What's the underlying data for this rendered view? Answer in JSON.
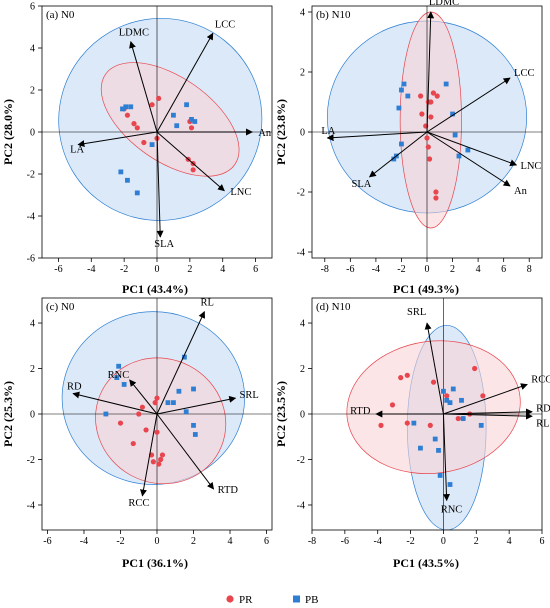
{
  "colors": {
    "PR": "#e8454e",
    "PB": "#2e7fd4",
    "PR_fill": "#f8d3d6",
    "PB_fill": "#cfe2f5"
  },
  "legend": {
    "items": [
      {
        "key": "PR",
        "label": "PR"
      },
      {
        "key": "PB",
        "label": "PB"
      }
    ],
    "placement": "bottom-center"
  },
  "chart_data": [
    {
      "type": "scatter",
      "label": "(a) N0",
      "xlabel": "PC1 (43.4%)",
      "ylabel": "PC2 (28.0%)",
      "xlim": [
        -7,
        7
      ],
      "ylim": [
        -6,
        6
      ],
      "xticks": [
        -6,
        -4,
        -2,
        0,
        2,
        4,
        6
      ],
      "yticks": [
        -6,
        -4,
        -2,
        0,
        2,
        4,
        6
      ],
      "ellipses": {
        "PB": {
          "cx": 0.2,
          "cy": 0.6,
          "rx": 6.2,
          "ry": 4.8,
          "angle": 30
        },
        "PR": {
          "cx": 0.8,
          "cy": 0.6,
          "rx": 4.8,
          "ry": 2.0,
          "angle": -35
        }
      },
      "series": [
        {
          "group": "PR",
          "points": [
            [
              -2.0,
              1.1
            ],
            [
              -1.8,
              0.8
            ],
            [
              -1.4,
              0.4
            ],
            [
              -1.2,
              0.2
            ],
            [
              -0.8,
              -0.5
            ],
            [
              -0.3,
              1.3
            ],
            [
              0.0,
              -0.3
            ],
            [
              0.1,
              1.6
            ],
            [
              2.0,
              0.5
            ],
            [
              2.1,
              0.2
            ],
            [
              1.9,
              -1.3
            ],
            [
              2.2,
              -1.5
            ],
            [
              2.2,
              -1.8
            ]
          ]
        },
        {
          "group": "PB",
          "points": [
            [
              -2.1,
              1.1
            ],
            [
              -1.9,
              1.2
            ],
            [
              -1.6,
              1.2
            ],
            [
              -2.2,
              -1.9
            ],
            [
              -1.8,
              -2.3
            ],
            [
              -1.2,
              -2.9
            ],
            [
              -0.3,
              -0.6
            ],
            [
              1.0,
              0.8
            ],
            [
              1.2,
              0.3
            ],
            [
              1.8,
              1.3
            ],
            [
              2.1,
              0.6
            ],
            [
              2.3,
              0.5
            ]
          ]
        }
      ],
      "vectors": [
        {
          "name": "LDMC",
          "x": -1.6,
          "y": 4.3
        },
        {
          "name": "LCC",
          "x": 3.4,
          "y": 4.7
        },
        {
          "name": "An",
          "x": 5.8,
          "y": 0.0
        },
        {
          "name": "LA",
          "x": -4.8,
          "y": -0.6
        },
        {
          "name": "LNC",
          "x": 4.1,
          "y": -2.8
        },
        {
          "name": "SLA",
          "x": 0.2,
          "y": -5.0
        }
      ]
    },
    {
      "type": "scatter",
      "label": "(b) N10",
      "xlabel": "PC1 (49.3%)",
      "ylabel": "PC2 (23.8%)",
      "xlim": [
        -9,
        9
      ],
      "ylim": [
        -4.2,
        4.2
      ],
      "xticks": [
        -8,
        -6,
        -4,
        -2,
        0,
        2,
        4,
        6,
        8
      ],
      "yticks": [
        -4,
        -2,
        0,
        2,
        4
      ],
      "ellipses": {
        "PB": {
          "cx": 0.0,
          "cy": 0.5,
          "rx": 7.8,
          "ry": 3.2,
          "angle": 0
        },
        "PR": {
          "cx": 0.3,
          "cy": 0.4,
          "rx": 2.4,
          "ry": 3.6,
          "angle": 0
        }
      },
      "series": [
        {
          "group": "PR",
          "points": [
            [
              -0.5,
              1.2
            ],
            [
              -0.4,
              0.6
            ],
            [
              -0.1,
              0.2
            ],
            [
              0.0,
              -0.2
            ],
            [
              0.1,
              -0.5
            ],
            [
              0.2,
              -0.9
            ],
            [
              0.3,
              0.5
            ],
            [
              0.3,
              1.0
            ],
            [
              0.5,
              1.3
            ],
            [
              0.7,
              -2.0
            ],
            [
              0.7,
              -2.2
            ],
            [
              0.8,
              1.2
            ],
            [
              0.1,
              1.0
            ]
          ]
        },
        {
          "group": "PB",
          "points": [
            [
              -2.6,
              -0.9
            ],
            [
              -2.4,
              -0.8
            ],
            [
              -2.2,
              0.8
            ],
            [
              -2.0,
              1.4
            ],
            [
              -1.8,
              1.6
            ],
            [
              -1.5,
              1.2
            ],
            [
              1.5,
              1.6
            ],
            [
              2.0,
              0.6
            ],
            [
              2.2,
              -0.1
            ],
            [
              2.5,
              -0.8
            ],
            [
              3.2,
              -0.6
            ],
            [
              -2.0,
              -0.4
            ]
          ]
        }
      ],
      "vectors": [
        {
          "name": "LDMC",
          "x": 0.3,
          "y": 4.0
        },
        {
          "name": "LCC",
          "x": 6.5,
          "y": 1.8
        },
        {
          "name": "LA",
          "x": -7.8,
          "y": -0.2
        },
        {
          "name": "SLA",
          "x": -4.5,
          "y": -1.5
        },
        {
          "name": "LNC",
          "x": 7.0,
          "y": -1.1
        },
        {
          "name": "An",
          "x": 6.5,
          "y": -1.8
        }
      ]
    },
    {
      "type": "scatter",
      "label": "(c) N0",
      "xlabel": "PC1 (36.1%)",
      "ylabel": "PC2 (25.3%)",
      "xlim": [
        -6.3,
        6.3
      ],
      "ylim": [
        -5.1,
        5.1
      ],
      "xticks": [
        -6,
        -4,
        -2,
        0,
        2,
        4,
        6
      ],
      "yticks": [
        -4,
        -2,
        0,
        2,
        4
      ],
      "ellipses": {
        "PB": {
          "cx": -0.2,
          "cy": 0.7,
          "rx": 5.0,
          "ry": 3.8,
          "angle": 0
        },
        "PR": {
          "cx": 0.2,
          "cy": -0.3,
          "rx": 3.4,
          "ry": 2.9,
          "angle": 62
        }
      },
      "series": [
        {
          "group": "PR",
          "points": [
            [
              -2.0,
              -0.4
            ],
            [
              -1.0,
              0.0
            ],
            [
              -0.8,
              0.3
            ],
            [
              -0.6,
              -0.7
            ],
            [
              -0.3,
              -1.8
            ],
            [
              -0.2,
              -2.1
            ],
            [
              0.0,
              -0.8
            ],
            [
              0.0,
              0.7
            ],
            [
              0.1,
              -2.2
            ],
            [
              0.2,
              -2.0
            ],
            [
              0.3,
              -1.8
            ],
            [
              -1.3,
              -1.3
            ],
            [
              -0.1,
              0.5
            ]
          ]
        },
        {
          "group": "PB",
          "points": [
            [
              -2.2,
              1.6
            ],
            [
              -2.1,
              2.1
            ],
            [
              -1.8,
              1.3
            ],
            [
              -2.8,
              0.0
            ],
            [
              0.6,
              0.5
            ],
            [
              0.9,
              0.5
            ],
            [
              1.2,
              1.0
            ],
            [
              1.5,
              2.5
            ],
            [
              1.6,
              0.1
            ],
            [
              2.0,
              1.1
            ],
            [
              2.0,
              -0.5
            ],
            [
              2.1,
              -0.9
            ]
          ]
        }
      ],
      "vectors": [
        {
          "name": "RL",
          "x": 2.6,
          "y": 4.5
        },
        {
          "name": "SRL",
          "x": 4.3,
          "y": 0.7
        },
        {
          "name": "RD",
          "x": -4.6,
          "y": 0.9
        },
        {
          "name": "RNC",
          "x": -1.5,
          "y": 1.5
        },
        {
          "name": "RTD",
          "x": 3.1,
          "y": -3.3
        },
        {
          "name": "RCC",
          "x": -0.8,
          "y": -3.6
        }
      ]
    },
    {
      "type": "scatter",
      "label": "(d) N10",
      "xlabel": "PC1 (43.5%)",
      "ylabel": "PC2 (23.5%)",
      "xlim": [
        -8,
        6
      ],
      "ylim": [
        -5.1,
        5.1
      ],
      "xticks": [
        -8,
        -6,
        -4,
        -2,
        0,
        2,
        4,
        6
      ],
      "yticks": [
        -4,
        -2,
        0,
        2,
        4
      ],
      "ellipses": {
        "PB": {
          "cx": 0.2,
          "cy": -0.6,
          "rx": 2.4,
          "ry": 4.5,
          "angle": 0
        },
        "PR": {
          "cx": -0.6,
          "cy": 0.3,
          "rx": 5.3,
          "ry": 2.9,
          "angle": 8
        }
      },
      "series": [
        {
          "group": "PR",
          "points": [
            [
              -3.8,
              -0.5
            ],
            [
              -2.6,
              1.6
            ],
            [
              -2.2,
              1.7
            ],
            [
              -3.1,
              0.4
            ],
            [
              -2.2,
              -0.4
            ],
            [
              -0.8,
              -0.5
            ],
            [
              -0.6,
              1.4
            ],
            [
              0.2,
              0.8
            ],
            [
              0.9,
              -0.2
            ],
            [
              1.2,
              -0.2
            ],
            [
              1.6,
              0.0
            ],
            [
              1.9,
              2.0
            ],
            [
              2.4,
              0.8
            ]
          ]
        },
        {
          "group": "PB",
          "points": [
            [
              -1.8,
              -0.4
            ],
            [
              -1.4,
              -1.5
            ],
            [
              -0.5,
              -1.1
            ],
            [
              0.0,
              1.0
            ],
            [
              0.2,
              0.6
            ],
            [
              0.4,
              0.5
            ],
            [
              0.6,
              1.1
            ],
            [
              1.1,
              0.6
            ],
            [
              1.2,
              -0.2
            ],
            [
              -0.2,
              -2.7
            ],
            [
              0.4,
              -3.1
            ],
            [
              -0.3,
              -1.6
            ],
            [
              2.3,
              -0.5
            ]
          ]
        }
      ],
      "vectors": [
        {
          "name": "SRL",
          "x": -1.0,
          "y": 4.0
        },
        {
          "name": "RCC",
          "x": 5.1,
          "y": 1.3
        },
        {
          "name": "RD",
          "x": 5.4,
          "y": 0.1
        },
        {
          "name": "RL",
          "x": 5.4,
          "y": -0.1
        },
        {
          "name": "RTD",
          "x": -4.1,
          "y": 0.0
        },
        {
          "name": "RNC",
          "x": 0.2,
          "y": -3.8
        }
      ]
    }
  ]
}
